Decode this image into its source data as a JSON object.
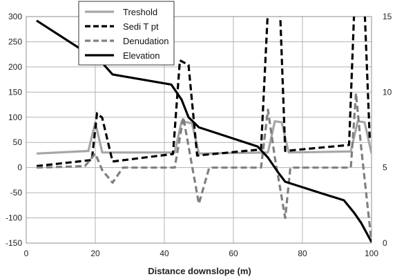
{
  "chart_data": {
    "type": "line",
    "xlabel": "Distance downslope (m)",
    "xlim": [
      0,
      100
    ],
    "xticks": [
      0,
      20,
      40,
      60,
      80,
      100
    ],
    "ylim": [
      -150,
      300
    ],
    "yticks": [
      -150,
      -100,
      -50,
      0,
      50,
      100,
      150,
      200,
      250,
      300
    ],
    "y2lim": [
      0,
      15
    ],
    "y2ticks": [
      0,
      5,
      10,
      15
    ],
    "grid": true,
    "legend_position": "top-left",
    "series": [
      {
        "name": "Treshold",
        "axis": "left",
        "color": "#a6a6a6",
        "dash": "solid",
        "x": [
          3,
          18,
          20,
          22,
          43,
          45,
          48,
          50,
          70,
          72,
          74,
          76,
          94,
          96,
          98,
          100
        ],
        "y": [
          28,
          33,
          90,
          30,
          30,
          92,
          88,
          28,
          30,
          92,
          90,
          30,
          32,
          92,
          90,
          28
        ]
      },
      {
        "name": "Sedi T pt",
        "axis": "right",
        "color": "#000000",
        "dash": "dashed",
        "x": [
          3,
          19,
          20.5,
          22,
          25,
          42.5,
          44.5,
          47,
          49.5,
          68,
          70,
          73.5,
          75,
          93.5,
          95,
          98,
          99.5
        ],
        "y": [
          5.1,
          5.5,
          8.6,
          8.3,
          5.4,
          5.9,
          12.1,
          11.8,
          5.8,
          6.2,
          15.5,
          15.5,
          6.1,
          6.5,
          15.5,
          15.5,
          6.8
        ]
      },
      {
        "name": "Denudation",
        "axis": "left",
        "color": "#7f7f7f",
        "dash": "dashed",
        "x": [
          3,
          17,
          20,
          22,
          25,
          28,
          43,
          45.5,
          50,
          53,
          68,
          70,
          72,
          75,
          76.5,
          94,
          95.5,
          97,
          100
        ],
        "y": [
          0,
          3,
          28,
          -5,
          -30,
          0,
          0,
          100,
          -72,
          0,
          0,
          115,
          20,
          -100,
          0,
          0,
          148,
          40,
          -148
        ]
      },
      {
        "name": "Elevation",
        "axis": "left",
        "color": "#000000",
        "dash": "solid",
        "x": [
          3,
          22,
          25,
          42,
          45,
          47,
          50,
          67,
          70,
          73,
          75,
          85,
          92,
          95,
          97,
          100
        ],
        "y": [
          292,
          208,
          185,
          165,
          135,
          100,
          80,
          42,
          20,
          -10,
          -28,
          -50,
          -65,
          -90,
          -110,
          -148
        ]
      }
    ]
  }
}
